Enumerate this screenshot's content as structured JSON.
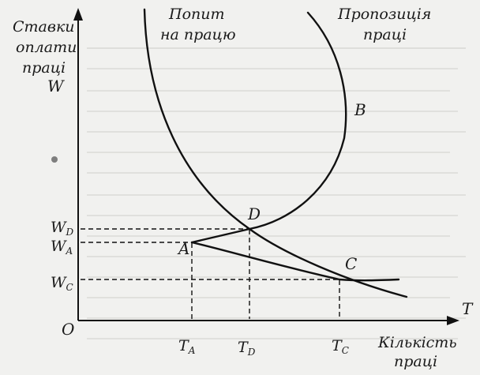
{
  "labels": {
    "y_axis_title": [
      "Ставки",
      "оплати",
      "праці"
    ],
    "y_axis_symbol": "W",
    "x_axis_symbol": "T",
    "x_axis_title": [
      "Кількість",
      "праці"
    ],
    "origin": "O",
    "demand_title": [
      "Попит",
      "на працю"
    ],
    "supply_title": [
      "Пропозиція",
      "праці"
    ],
    "curve_b": "B",
    "point_a": "A",
    "point_d": "D",
    "point_c": "C",
    "w_d": {
      "main": "W",
      "sub": "D"
    },
    "w_a": {
      "main": "W",
      "sub": "A"
    },
    "w_c": {
      "main": "W",
      "sub": "C"
    },
    "t_a": {
      "main": "T",
      "sub": "A"
    },
    "t_d": {
      "main": "T",
      "sub": "D"
    },
    "t_c": {
      "main": "T",
      "sub": "C"
    }
  },
  "colors": {
    "ink": "#111111",
    "paper": "#f1f1ef",
    "bleed_text": "#b9b9b6"
  }
}
